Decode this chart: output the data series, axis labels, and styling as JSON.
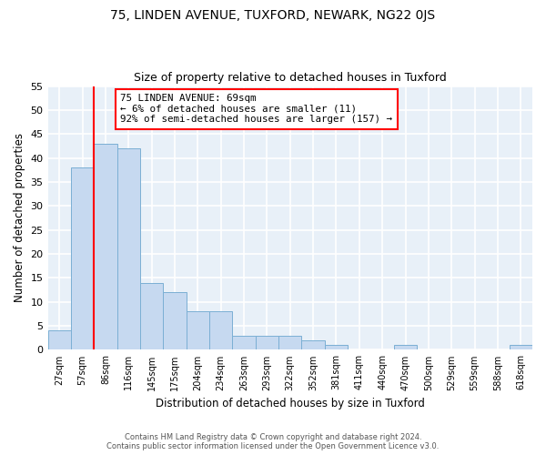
{
  "title1": "75, LINDEN AVENUE, TUXFORD, NEWARK, NG22 0JS",
  "title2": "Size of property relative to detached houses in Tuxford",
  "xlabel": "Distribution of detached houses by size in Tuxford",
  "ylabel": "Number of detached properties",
  "bar_color": "#c6d9f0",
  "bar_edge_color": "#7bafd4",
  "categories": [
    "27sqm",
    "57sqm",
    "86sqm",
    "116sqm",
    "145sqm",
    "175sqm",
    "204sqm",
    "234sqm",
    "263sqm",
    "293sqm",
    "322sqm",
    "352sqm",
    "381sqm",
    "411sqm",
    "440sqm",
    "470sqm",
    "500sqm",
    "529sqm",
    "559sqm",
    "588sqm",
    "618sqm"
  ],
  "values": [
    4,
    38,
    43,
    42,
    14,
    12,
    8,
    8,
    3,
    3,
    3,
    2,
    1,
    0,
    0,
    1,
    0,
    0,
    0,
    0,
    1
  ],
  "ylim": [
    0,
    55
  ],
  "yticks": [
    0,
    5,
    10,
    15,
    20,
    25,
    30,
    35,
    40,
    45,
    50,
    55
  ],
  "annotation_line1": "75 LINDEN AVENUE: 69sqm",
  "annotation_line2": "← 6% of detached houses are smaller (11)",
  "annotation_line3": "92% of semi-detached houses are larger (157) →",
  "annotation_box_color": "white",
  "annotation_box_edge_color": "red",
  "vline_color": "red",
  "vline_bar_index": 1,
  "footer_line1": "Contains HM Land Registry data © Crown copyright and database right 2024.",
  "footer_line2": "Contains public sector information licensed under the Open Government Licence v3.0.",
  "bg_color": "#e8f0f8",
  "grid_color": "white",
  "title1_fontsize": 10,
  "title2_fontsize": 9
}
